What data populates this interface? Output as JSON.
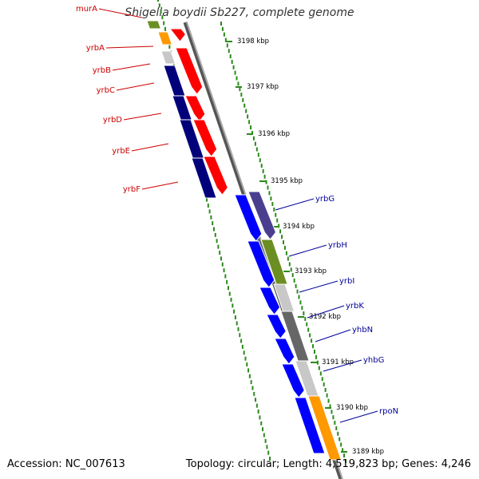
{
  "title": "Shigella boydii Sb227, complete genome",
  "footer": {
    "accession": "Accession: NC_007613",
    "summary": "Topology: circular; Length: 4,519,823 bp; Genes: 4,246"
  },
  "colors": {
    "ruler": "#2a8a1a",
    "backbone": "#888888",
    "left_label": "#cc0000",
    "right_label": "#000099",
    "red": "#ff0000",
    "blue": "#0000ff",
    "navy": "#00007a",
    "slate": "#4a3f8f",
    "olive": "#6b8e23",
    "lightgray": "#c8c8c8",
    "darkgray": "#666666",
    "orange": "#ff9900"
  },
  "ruler_ticks": [
    "3198 kbp",
    "3197 kbp",
    "3196 kbp",
    "3195 kbp",
    "3194 kbp",
    "3193 kbp",
    "3192 kbp",
    "3191 kbp",
    "3190 kbp",
    "3189 kbp"
  ],
  "left_genes": [
    "murA",
    "yrbA",
    "yrbB",
    "yrbC",
    "yrbD",
    "yrbE",
    "yrbF"
  ],
  "right_genes": [
    "yrbG",
    "yrbH",
    "yrbI",
    "yrbK",
    "yhbN",
    "yhbG",
    "rpoN"
  ]
}
